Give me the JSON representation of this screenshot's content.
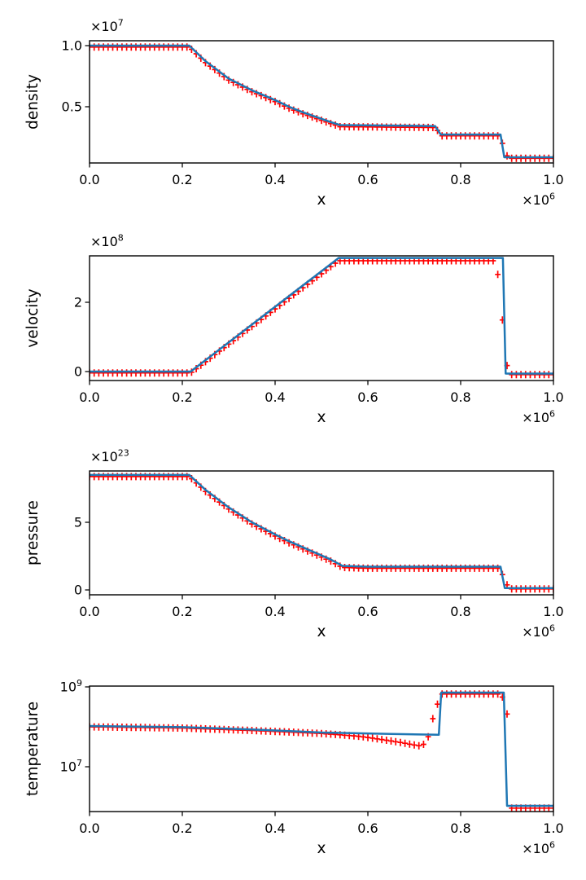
{
  "figure": {
    "background": "#ffffff",
    "title": ""
  },
  "chart_data": [
    {
      "id": "density",
      "type": "line",
      "title": "",
      "xlabel": "x",
      "ylabel": "density",
      "y_offset_label": "×10^7",
      "x_offset_label": "×10^6",
      "yscale": "linear",
      "xlim": [
        0.0,
        1.0
      ],
      "ylim": [
        0.04,
        1.04
      ],
      "xticks": [
        {
          "v": 0.0,
          "label": "0.0"
        },
        {
          "v": 0.2,
          "label": "0.2"
        },
        {
          "v": 0.4,
          "label": "0.4"
        },
        {
          "v": 0.6,
          "label": "0.6"
        },
        {
          "v": 0.8,
          "label": "0.8"
        },
        {
          "v": 1.0,
          "label": "1.0"
        }
      ],
      "yticks": [
        {
          "v": 0.5,
          "label": "0.5"
        },
        {
          "v": 1.0,
          "label": "1.0"
        }
      ],
      "grid": false,
      "legend": null,
      "line_color": "#1f77b4",
      "marker_color": "#ff0000",
      "units": "values in 1e7",
      "line_points": [
        [
          0,
          1.0
        ],
        [
          0.215,
          1.0
        ],
        [
          0.25,
          0.873
        ],
        [
          0.3,
          0.73
        ],
        [
          0.35,
          0.635
        ],
        [
          0.4,
          0.555
        ],
        [
          0.43,
          0.5
        ],
        [
          0.46,
          0.455
        ],
        [
          0.49,
          0.415
        ],
        [
          0.52,
          0.375
        ],
        [
          0.54,
          0.35
        ],
        [
          0.745,
          0.342
        ],
        [
          0.757,
          0.273
        ],
        [
          0.886,
          0.273
        ],
        [
          0.894,
          0.087
        ],
        [
          1.0,
          0.087
        ]
      ],
      "marker_step": 0.01,
      "marker_points": [
        [
          0,
          0.988
        ],
        [
          0.215,
          0.988
        ],
        [
          0.25,
          0.861
        ],
        [
          0.3,
          0.718
        ],
        [
          0.35,
          0.623
        ],
        [
          0.4,
          0.543
        ],
        [
          0.43,
          0.488
        ],
        [
          0.46,
          0.443
        ],
        [
          0.49,
          0.403
        ],
        [
          0.52,
          0.363
        ],
        [
          0.54,
          0.337
        ],
        [
          0.745,
          0.33
        ],
        [
          0.759,
          0.262
        ],
        [
          0.884,
          0.262
        ],
        [
          0.902,
          0.078
        ],
        [
          1.0,
          0.078
        ]
      ]
    },
    {
      "id": "velocity",
      "type": "line",
      "title": "",
      "xlabel": "x",
      "ylabel": "velocity",
      "y_offset_label": "×10^8",
      "x_offset_label": "×10^6",
      "yscale": "linear",
      "xlim": [
        0.0,
        1.0
      ],
      "ylim": [
        -0.259,
        3.341
      ],
      "xticks": [
        {
          "v": 0.0,
          "label": "0.0"
        },
        {
          "v": 0.2,
          "label": "0.2"
        },
        {
          "v": 0.4,
          "label": "0.4"
        },
        {
          "v": 0.6,
          "label": "0.6"
        },
        {
          "v": 0.8,
          "label": "0.8"
        },
        {
          "v": 1.0,
          "label": "1.0"
        }
      ],
      "yticks": [
        {
          "v": 0,
          "label": "0"
        },
        {
          "v": 2,
          "label": "2"
        }
      ],
      "grid": false,
      "legend": null,
      "line_color": "#1f77b4",
      "marker_color": "#ff0000",
      "units": "values in 1e8",
      "line_points": [
        [
          0,
          0.0
        ],
        [
          0.218,
          0.0
        ],
        [
          0.537,
          3.28
        ],
        [
          0.891,
          3.28
        ],
        [
          0.897,
          -0.06
        ],
        [
          1.0,
          -0.06
        ]
      ],
      "marker_step": 0.01,
      "marker_points": [
        [
          0,
          -0.04
        ],
        [
          0.218,
          -0.04
        ],
        [
          0.537,
          3.2
        ],
        [
          0.877,
          3.2
        ],
        [
          0.902,
          -0.09
        ],
        [
          1.0,
          -0.09
        ]
      ]
    },
    {
      "id": "pressure",
      "type": "line",
      "title": "",
      "xlabel": "x",
      "ylabel": "pressure",
      "y_offset_label": "×10^23",
      "x_offset_label": "×10^6",
      "yscale": "linear",
      "xlim": [
        0.0,
        1.0
      ],
      "ylim": [
        -0.361,
        8.795
      ],
      "xticks": [
        {
          "v": 0.0,
          "label": "0.0"
        },
        {
          "v": 0.2,
          "label": "0.2"
        },
        {
          "v": 0.4,
          "label": "0.4"
        },
        {
          "v": 0.6,
          "label": "0.6"
        },
        {
          "v": 0.8,
          "label": "0.8"
        },
        {
          "v": 1.0,
          "label": "1.0"
        }
      ],
      "yticks": [
        {
          "v": 0,
          "label": "0"
        },
        {
          "v": 5,
          "label": "5"
        }
      ],
      "grid": false,
      "legend": null,
      "line_color": "#1f77b4",
      "marker_color": "#ff0000",
      "units": "values in 1e23",
      "line_points": [
        [
          0,
          8.5
        ],
        [
          0.215,
          8.5
        ],
        [
          0.25,
          7.4
        ],
        [
          0.3,
          6.1
        ],
        [
          0.35,
          5.0
        ],
        [
          0.4,
          4.1
        ],
        [
          0.43,
          3.6
        ],
        [
          0.46,
          3.15
        ],
        [
          0.49,
          2.7
        ],
        [
          0.52,
          2.25
        ],
        [
          0.545,
          1.78
        ],
        [
          0.6,
          1.72
        ],
        [
          0.886,
          1.72
        ],
        [
          0.895,
          0.13
        ],
        [
          1.0,
          0.13
        ]
      ],
      "marker_step": 0.01,
      "marker_points": [
        [
          0,
          8.38
        ],
        [
          0.215,
          8.38
        ],
        [
          0.25,
          7.28
        ],
        [
          0.3,
          5.98
        ],
        [
          0.35,
          4.88
        ],
        [
          0.4,
          3.98
        ],
        [
          0.43,
          3.48
        ],
        [
          0.46,
          3.03
        ],
        [
          0.49,
          2.58
        ],
        [
          0.52,
          2.13
        ],
        [
          0.545,
          1.66
        ],
        [
          0.6,
          1.6
        ],
        [
          0.884,
          1.6
        ],
        [
          0.904,
          0.07
        ],
        [
          1.0,
          0.07
        ]
      ]
    },
    {
      "id": "temperature",
      "type": "line",
      "title": "",
      "xlabel": "x",
      "ylabel": "temperature",
      "y_offset_label": null,
      "x_offset_label": "×10^6",
      "yscale": "log",
      "xlim": [
        0.0,
        1.0
      ],
      "ylim": [
        755000.0,
        1048000000.0
      ],
      "xticks": [
        {
          "v": 0.0,
          "label": "0.0"
        },
        {
          "v": 0.2,
          "label": "0.2"
        },
        {
          "v": 0.4,
          "label": "0.4"
        },
        {
          "v": 0.6,
          "label": "0.6"
        },
        {
          "v": 0.8,
          "label": "0.8"
        },
        {
          "v": 1.0,
          "label": "1.0"
        }
      ],
      "yticks": [
        {
          "v": 10000000.0,
          "label": "10^7"
        },
        {
          "v": 1000000000.0,
          "label": "10^9"
        }
      ],
      "grid": false,
      "legend": null,
      "line_color": "#1f77b4",
      "marker_color": "#ff0000",
      "units": "kelvin",
      "line_points": [
        [
          0,
          105000000.0
        ],
        [
          0.2,
          98000000.0
        ],
        [
          0.35,
          86000000.0
        ],
        [
          0.5,
          72000000.0
        ],
        [
          0.65,
          66000000.0
        ],
        [
          0.753,
          63000000.0
        ],
        [
          0.758,
          720000000.0
        ],
        [
          0.893,
          720000000.0
        ],
        [
          0.9,
          1050000.0
        ],
        [
          1.0,
          1050000.0
        ]
      ],
      "marker_step": 0.01,
      "marker_points": [
        [
          0,
          100000000.0
        ],
        [
          0.2,
          93000000.0
        ],
        [
          0.35,
          81000000.0
        ],
        [
          0.5,
          68000000.0
        ],
        [
          0.58,
          58000000.0
        ],
        [
          0.64,
          46000000.0
        ],
        [
          0.7,
          35000000.0
        ],
        [
          0.715,
          33000000.0
        ],
        [
          0.728,
          42000000.0
        ],
        [
          0.736,
          100000000.0
        ],
        [
          0.744,
          220000000.0
        ],
        [
          0.752,
          420000000.0
        ],
        [
          0.76,
          660000000.0
        ],
        [
          0.887,
          660000000.0
        ],
        [
          0.906,
          920000.0
        ],
        [
          1.0,
          920000.0
        ]
      ]
    }
  ]
}
